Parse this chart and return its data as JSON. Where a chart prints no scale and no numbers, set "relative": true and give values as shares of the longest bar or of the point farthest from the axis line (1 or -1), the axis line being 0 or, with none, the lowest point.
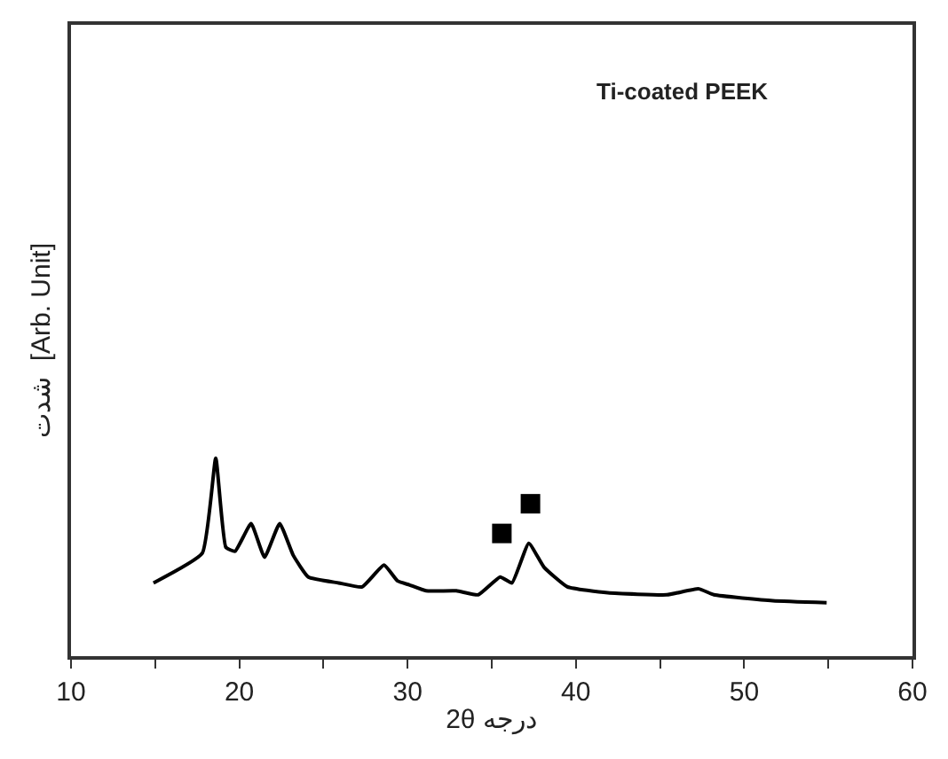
{
  "chart_data": {
    "type": "line",
    "relative": true,
    "xlabel": "2θ درجه",
    "ylabel": "شدت  [Arb. Unit]",
    "xlim": [
      10,
      60
    ],
    "xticks": [
      10,
      {
        "value": 15,
        "label": null
      },
      20,
      {
        "value": 25,
        "label": null
      },
      30,
      {
        "value": 35,
        "label": null
      },
      40,
      {
        "value": 45,
        "label": null
      },
      50,
      {
        "value": 55,
        "label": null
      },
      60
    ],
    "tick_labels": "x",
    "annotations": [
      "Ti-coated PEEK"
    ],
    "series": [
      {
        "color": "#000000",
        "marker": "none",
        "line_style": "solid",
        "x": [
          14.9,
          17.8,
          18.6,
          19.2,
          19.75,
          20.7,
          21.5,
          22.4,
          23.2,
          24.1,
          25.9,
          27.3,
          28.6,
          29.4,
          30.1,
          31.1,
          32.9,
          34.2,
          35.5,
          36.2,
          37.2,
          38.1,
          39.5,
          41.9,
          45.4,
          47.3,
          48.2,
          51.7,
          54.9
        ],
        "values": [
          0.37,
          0.52,
          1.0,
          0.55,
          0.53,
          0.67,
          0.5,
          0.67,
          0.51,
          0.4,
          0.37,
          0.35,
          0.46,
          0.38,
          0.36,
          0.33,
          0.33,
          0.31,
          0.4,
          0.37,
          0.57,
          0.45,
          0.35,
          0.32,
          0.31,
          0.34,
          0.31,
          0.28,
          0.27
        ]
      },
      {
        "type": "scatter",
        "color": "#000000",
        "marker": "square",
        "x": [
          35.6,
          37.3
        ],
        "values": [
          0.62,
          0.77
        ]
      }
    ]
  }
}
